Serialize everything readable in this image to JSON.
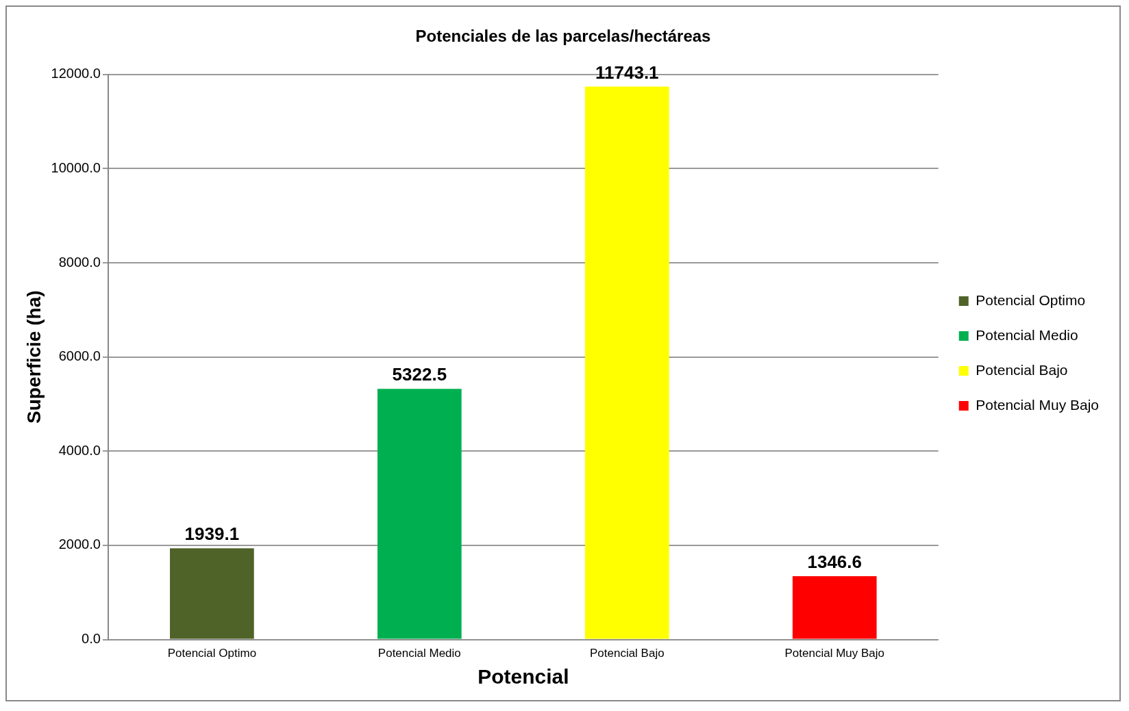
{
  "chart_data": {
    "type": "bar",
    "title": "Potenciales de las parcelas/hectáreas",
    "xlabel": "Potencial",
    "ylabel": "Superficie (ha)",
    "categories": [
      "Potencial Optimo",
      "Potencial Medio",
      "Potencial Bajo",
      "Potencial Muy Bajo"
    ],
    "series": [
      {
        "name": "Potencial Optimo",
        "color": "#4f6228",
        "values": [
          1939.1,
          null,
          null,
          null
        ]
      },
      {
        "name": "Potencial Medio",
        "color": "#00b050",
        "values": [
          null,
          5322.5,
          null,
          null
        ]
      },
      {
        "name": "Potencial Bajo",
        "color": "#ffff00",
        "values": [
          null,
          null,
          11743.1,
          null
        ]
      },
      {
        "name": "Potencial Muy Bajo",
        "color": "#ff0000",
        "values": [
          null,
          null,
          null,
          1346.6
        ]
      }
    ],
    "ylim": [
      0,
      12000
    ],
    "yticks": [
      {
        "value": 0,
        "label": "0.0"
      },
      {
        "value": 2000,
        "label": "2000.0"
      },
      {
        "value": 4000,
        "label": "4000.0"
      },
      {
        "value": 6000,
        "label": "6000.0"
      },
      {
        "value": 8000,
        "label": "8000.0"
      },
      {
        "value": 10000,
        "label": "10000.0"
      },
      {
        "value": 12000,
        "label": "12000.0"
      }
    ],
    "grid": "y",
    "legend": "right",
    "data_labels": true
  }
}
